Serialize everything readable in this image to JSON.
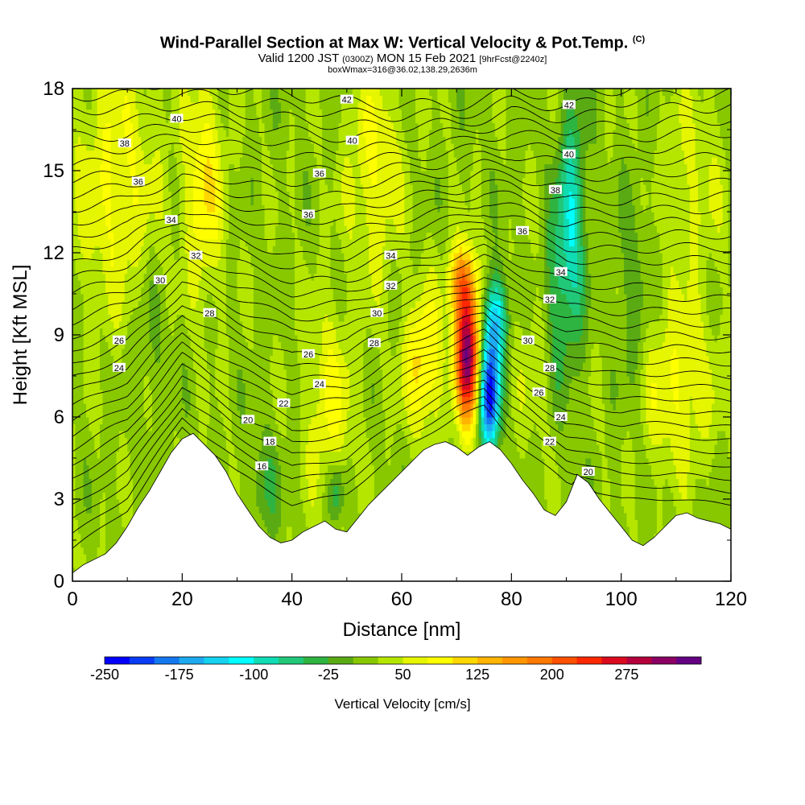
{
  "header": {
    "title": "Wind-Parallel Section at Max W: Vertical Velocity & Pot.Temp.",
    "title_suffix": "(C)",
    "valid_a": "Valid 1200 JST",
    "valid_b": "(0300Z)",
    "valid_c": "MON 15 Feb 2021",
    "valid_d": "[9hrFcst@2240z]",
    "box_info": "boxWmax=316@36.02,138.29,2636m"
  },
  "chart_data": {
    "type": "heatmap",
    "xlabel": "Distance [nm]",
    "ylabel": "Height [Kft MSL]",
    "xlim": [
      0,
      120
    ],
    "ylim": [
      0,
      18
    ],
    "x_ticks": [
      {
        "v": 0,
        "label": "0"
      },
      {
        "v": 20,
        "label": "20"
      },
      {
        "v": 40,
        "label": "40"
      },
      {
        "v": 60,
        "label": "60"
      },
      {
        "v": 80,
        "label": "80"
      },
      {
        "v": 100,
        "label": "100"
      },
      {
        "v": 120,
        "label": "120"
      }
    ],
    "y_ticks": [
      {
        "v": 0,
        "label": "0"
      },
      {
        "v": 3,
        "label": "3"
      },
      {
        "v": 6,
        "label": "6"
      },
      {
        "v": 9,
        "label": "9"
      },
      {
        "v": 12,
        "label": "12"
      },
      {
        "v": 15,
        "label": "15"
      },
      {
        "v": 18,
        "label": "18"
      }
    ],
    "colorbar": {
      "label": "Vertical Velocity [cm/s]",
      "colors": [
        "#0000ff",
        "#0a3cf5",
        "#1478f0",
        "#1eaaf0",
        "#14d2f0",
        "#00ffff",
        "#10dcb4",
        "#20c878",
        "#2eb440",
        "#5aaa14",
        "#88c800",
        "#b4e600",
        "#e6f500",
        "#ffff00",
        "#ffd700",
        "#ffb400",
        "#ff9600",
        "#ff7800",
        "#ff5000",
        "#ff2800",
        "#dc0a1e",
        "#b4003c",
        "#8c0064",
        "#640082"
      ],
      "tick_labels": [
        {
          "i": 0,
          "label": "-250"
        },
        {
          "i": 3,
          "label": "-175"
        },
        {
          "i": 6,
          "label": "-100"
        },
        {
          "i": 9,
          "label": "-25"
        },
        {
          "i": 12,
          "label": "50"
        },
        {
          "i": 15,
          "label": "125"
        },
        {
          "i": 18,
          "label": "200"
        },
        {
          "i": 21,
          "label": "275"
        }
      ]
    },
    "terrain": [
      [
        0,
        0.3
      ],
      [
        2,
        0.6
      ],
      [
        4,
        0.8
      ],
      [
        6,
        1.0
      ],
      [
        8,
        1.4
      ],
      [
        10,
        2.0
      ],
      [
        12,
        2.7
      ],
      [
        14,
        3.3
      ],
      [
        16,
        4.0
      ],
      [
        18,
        4.7
      ],
      [
        20,
        5.2
      ],
      [
        22,
        5.4
      ],
      [
        24,
        5.0
      ],
      [
        26,
        4.6
      ],
      [
        28,
        4.0
      ],
      [
        30,
        3.2
      ],
      [
        32,
        2.6
      ],
      [
        34,
        2.0
      ],
      [
        36,
        1.6
      ],
      [
        38,
        1.4
      ],
      [
        40,
        1.5
      ],
      [
        42,
        1.8
      ],
      [
        44,
        2.0
      ],
      [
        46,
        2.2
      ],
      [
        48,
        1.9
      ],
      [
        50,
        1.8
      ],
      [
        52,
        2.3
      ],
      [
        54,
        2.8
      ],
      [
        56,
        3.2
      ],
      [
        58,
        3.6
      ],
      [
        60,
        4.0
      ],
      [
        62,
        4.4
      ],
      [
        64,
        4.8
      ],
      [
        66,
        5.0
      ],
      [
        68,
        5.1
      ],
      [
        70,
        4.9
      ],
      [
        72,
        4.6
      ],
      [
        74,
        4.9
      ],
      [
        76,
        5.1
      ],
      [
        78,
        4.8
      ],
      [
        80,
        4.3
      ],
      [
        82,
        3.7
      ],
      [
        84,
        3.2
      ],
      [
        86,
        2.6
      ],
      [
        88,
        2.4
      ],
      [
        90,
        2.9
      ],
      [
        92,
        3.9
      ],
      [
        94,
        3.6
      ],
      [
        96,
        3.0
      ],
      [
        98,
        2.5
      ],
      [
        100,
        2.0
      ],
      [
        102,
        1.5
      ],
      [
        104,
        1.3
      ],
      [
        106,
        1.6
      ],
      [
        108,
        2.0
      ],
      [
        110,
        2.4
      ],
      [
        112,
        2.5
      ],
      [
        114,
        2.3
      ],
      [
        116,
        2.2
      ],
      [
        118,
        2.1
      ],
      [
        120,
        1.9
      ]
    ],
    "contour_base": [
      [
        0,
        1.2
      ],
      [
        10,
        2.6
      ],
      [
        20,
        5.6
      ],
      [
        30,
        4.0
      ],
      [
        40,
        2.8
      ],
      [
        50,
        3.2
      ],
      [
        60,
        4.8
      ],
      [
        70,
        6.0
      ],
      [
        75,
        6.4
      ],
      [
        80,
        5.2
      ],
      [
        90,
        3.6
      ],
      [
        100,
        3.0
      ],
      [
        110,
        3.0
      ],
      [
        120,
        2.8
      ]
    ],
    "contour_top": [
      [
        0,
        18.3
      ],
      [
        10,
        18.2
      ],
      [
        20,
        18.2
      ],
      [
        30,
        18.0
      ],
      [
        40,
        17.8
      ],
      [
        50,
        17.5
      ],
      [
        60,
        17.4
      ],
      [
        70,
        17.4
      ],
      [
        75,
        17.6
      ],
      [
        80,
        17.9
      ],
      [
        90,
        17.8
      ],
      [
        100,
        18.0
      ],
      [
        110,
        18.2
      ],
      [
        120,
        18.3
      ]
    ],
    "contour_count": 34,
    "fields": [
      {
        "x": 72,
        "y": 8.3,
        "sx": 2.2,
        "sy": 2.4,
        "amp": 300
      },
      {
        "x": 71,
        "y": 11.0,
        "sx": 2.5,
        "sy": 1.3,
        "amp": 130
      },
      {
        "x": 64,
        "y": 8.0,
        "sx": 3.5,
        "sy": 2.5,
        "amp": 95
      },
      {
        "x": 76,
        "y": 6.8,
        "sx": 1.8,
        "sy": 2.0,
        "amp": -260
      },
      {
        "x": 77,
        "y": 9.6,
        "sx": 2.2,
        "sy": 1.6,
        "amp": -150
      },
      {
        "x": 91,
        "y": 13.0,
        "sx": 2.5,
        "sy": 4.5,
        "amp": -110
      },
      {
        "x": 88,
        "y": 10.5,
        "sx": 2.2,
        "sy": 3.5,
        "amp": -55
      },
      {
        "x": 24,
        "y": 14.5,
        "sx": 3.5,
        "sy": 4.0,
        "amp": 80
      },
      {
        "x": 8,
        "y": 14.5,
        "sx": 8.0,
        "sy": 5.0,
        "amp": 60
      },
      {
        "x": 47,
        "y": 6.5,
        "sx": 4.5,
        "sy": 3.5,
        "amp": 60
      },
      {
        "x": 55,
        "y": 15.0,
        "sx": 5.0,
        "sy": 4.0,
        "amp": 60
      },
      {
        "x": 110,
        "y": 7.0,
        "sx": 7.0,
        "sy": 3.0,
        "amp": 60
      },
      {
        "x": 113,
        "y": 14.5,
        "sx": 6.0,
        "sy": 4.0,
        "amp": 35
      },
      {
        "x": 48,
        "y": 3.3,
        "sx": 1.5,
        "sy": 1.2,
        "amp": -70
      },
      {
        "x": 35,
        "y": 3.5,
        "sx": 3.0,
        "sy": 2.0,
        "amp": -40
      },
      {
        "x": 14,
        "y": 9.0,
        "sx": 4.0,
        "sy": 3.0,
        "amp": -25
      },
      {
        "x": 102,
        "y": 10.0,
        "sx": 3.0,
        "sy": 4.0,
        "amp": -40
      },
      {
        "x": 84,
        "y": 8.0,
        "sx": 4.0,
        "sy": 3.0,
        "amp": 25
      }
    ],
    "contour_labels": [
      {
        "x": 50,
        "y": 17.6,
        "label": "42"
      },
      {
        "x": 90.5,
        "y": 17.4,
        "label": "42"
      },
      {
        "x": 19,
        "y": 16.9,
        "label": "40"
      },
      {
        "x": 51,
        "y": 16.1,
        "label": "40"
      },
      {
        "x": 90.5,
        "y": 15.6,
        "label": "40"
      },
      {
        "x": 9.5,
        "y": 16.0,
        "label": "38"
      },
      {
        "x": 88,
        "y": 14.3,
        "label": "38"
      },
      {
        "x": 12,
        "y": 14.6,
        "label": "36"
      },
      {
        "x": 45,
        "y": 14.9,
        "label": "36"
      },
      {
        "x": 43,
        "y": 13.4,
        "label": "36"
      },
      {
        "x": 82,
        "y": 12.8,
        "label": "36"
      },
      {
        "x": 18,
        "y": 13.2,
        "label": "34"
      },
      {
        "x": 58,
        "y": 11.9,
        "label": "34"
      },
      {
        "x": 89,
        "y": 11.3,
        "label": "34"
      },
      {
        "x": 22.5,
        "y": 11.9,
        "label": "32"
      },
      {
        "x": 58,
        "y": 10.8,
        "label": "32"
      },
      {
        "x": 87,
        "y": 10.3,
        "label": "32"
      },
      {
        "x": 16,
        "y": 11.0,
        "label": "30"
      },
      {
        "x": 55.5,
        "y": 9.8,
        "label": "30"
      },
      {
        "x": 83,
        "y": 8.8,
        "label": "30"
      },
      {
        "x": 25,
        "y": 9.8,
        "label": "28"
      },
      {
        "x": 55,
        "y": 8.7,
        "label": "28"
      },
      {
        "x": 87,
        "y": 7.8,
        "label": "28"
      },
      {
        "x": 8.5,
        "y": 8.8,
        "label": "26"
      },
      {
        "x": 43,
        "y": 8.3,
        "label": "26"
      },
      {
        "x": 85,
        "y": 6.9,
        "label": "26"
      },
      {
        "x": 8.5,
        "y": 7.8,
        "label": "24"
      },
      {
        "x": 45,
        "y": 7.2,
        "label": "24"
      },
      {
        "x": 89,
        "y": 6.0,
        "label": "24"
      },
      {
        "x": 38.5,
        "y": 6.5,
        "label": "22"
      },
      {
        "x": 87,
        "y": 5.1,
        "label": "22"
      },
      {
        "x": 32,
        "y": 5.9,
        "label": "20"
      },
      {
        "x": 94,
        "y": 4.0,
        "label": "20"
      },
      {
        "x": 36,
        "y": 5.1,
        "label": "18"
      },
      {
        "x": 34.5,
        "y": 4.2,
        "label": "16"
      }
    ]
  }
}
